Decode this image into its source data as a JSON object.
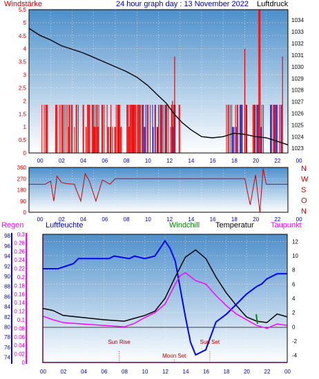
{
  "chart_data": [
    {
      "type": "line",
      "title": "24 hour graph day : 13 November 2022",
      "left_label": "Windstärke",
      "right_label": "Luftdruck",
      "x_ticks": [
        "00",
        "02",
        "04",
        "06",
        "08",
        "10",
        "12",
        "14",
        "16",
        "18",
        "20",
        "22",
        "00"
      ],
      "y_left_ticks": [
        "0",
        "0.5",
        "1",
        "1.5",
        "2",
        "2.5",
        "3",
        "3.5",
        "4",
        "4.5",
        "5",
        "5.5"
      ],
      "y_left_range": [
        0,
        5.5
      ],
      "y_right_ticks": [
        "1023",
        "1024",
        "1025",
        "1026",
        "1027",
        "1028",
        "1029",
        "1030",
        "1031",
        "1032",
        "1033",
        "1034"
      ],
      "y_right_range": [
        1022.6,
        1034.9
      ],
      "series": [
        {
          "name": "Luftdruck",
          "color": "#000000",
          "axis": "right",
          "x": [
            0,
            1,
            2,
            3,
            4,
            5,
            6,
            7,
            8,
            9,
            10,
            11,
            12,
            12.7,
            13.5,
            14.2,
            15,
            16,
            17,
            18,
            19,
            20,
            21,
            22,
            23,
            24
          ],
          "y": [
            1033.3,
            1032.7,
            1032.3,
            1031.8,
            1031.5,
            1031.2,
            1030.8,
            1030.4,
            1030.0,
            1029.6,
            1029.1,
            1028.4,
            1027.5,
            1026.9,
            1025.9,
            1025.2,
            1024.6,
            1024.0,
            1023.9,
            1024.0,
            1024.3,
            1024.2,
            1024.0,
            1023.9,
            1023.6,
            1023.3
          ]
        }
      ]
    },
    {
      "type": "line",
      "right_labels": [
        "N",
        "W",
        "S",
        "O",
        "N"
      ],
      "y_ticks": [
        "0",
        "90",
        "180",
        "270",
        "360"
      ],
      "y_range": [
        0,
        360
      ],
      "x_ticks": [
        "00",
        "02",
        "04",
        "06",
        "08",
        "10",
        "12",
        "14",
        "16",
        "18",
        "20",
        "22",
        "00"
      ],
      "series": [
        {
          "name": "Windrichtung",
          "color": "#cc0000",
          "x": [
            0,
            1.5,
            2.0,
            2.3,
            2.6,
            3.0,
            3.5,
            4.2,
            4.8,
            5.2,
            5.6,
            6.2,
            6.8,
            7.5,
            8.0,
            12.0,
            16.0,
            18.0,
            20.0,
            20.5,
            21.0,
            21.4,
            21.7,
            22.0,
            24.0
          ],
          "y": [
            225,
            225,
            250,
            90,
            290,
            240,
            230,
            225,
            90,
            310,
            250,
            90,
            260,
            225,
            270,
            270,
            270,
            270,
            270,
            60,
            300,
            0,
            350,
            225,
            225
          ]
        }
      ]
    },
    {
      "type": "line",
      "labels": {
        "regen": "Regen",
        "luftfeuchte": "Luftfeuchte",
        "windchill": "Windchill",
        "temperatur": "Temperatur",
        "taupunkt": "Taupunkt"
      },
      "events": [
        {
          "label": "Sun Rise",
          "hour": 7.5
        },
        {
          "label": "Moon Set",
          "hour": 12.9
        },
        {
          "label": "Sun Set",
          "hour": 16.4
        }
      ],
      "x_ticks": [
        "00",
        "02",
        "04",
        "06",
        "08",
        "10",
        "12",
        "14",
        "16",
        "18",
        "20",
        "22",
        "00"
      ],
      "y_humidity_ticks": [
        "74",
        "76",
        "78",
        "80",
        "82",
        "84",
        "86",
        "88",
        "90",
        "92",
        "94",
        "96",
        "98"
      ],
      "y_humidity_range": [
        73,
        98.3
      ],
      "y_rain_ticks": [
        "0",
        "0.02",
        "0.04",
        "0.06",
        "0.08",
        "0.1",
        "0.12",
        "0.14",
        "0.16",
        "0.18",
        "0.2",
        "0.22",
        "0.24",
        "0.26",
        "0.28",
        "0.3"
      ],
      "y_rain_range": [
        0,
        0.3
      ],
      "y_temp_ticks": [
        "-4",
        "-2",
        "0",
        "2",
        "4",
        "6",
        "8",
        "10",
        "12"
      ],
      "y_temp_range": [
        -5,
        13
      ],
      "series": [
        {
          "name": "Temperatur",
          "color": "#000000",
          "axis": "temp",
          "x": [
            0,
            1,
            2,
            4,
            6,
            8,
            9,
            10,
            11,
            12,
            13,
            14,
            15,
            16,
            17,
            18,
            19,
            20,
            21,
            22,
            23,
            24
          ],
          "y": [
            2.6,
            2.3,
            1.6,
            1.3,
            1.0,
            0.8,
            1.2,
            1.6,
            2.2,
            4.0,
            7.0,
            9.8,
            10.8,
            9.6,
            7.0,
            4.8,
            3.0,
            1.4,
            0.8,
            0.6,
            1.8,
            1.4
          ]
        },
        {
          "name": "Taupunkt",
          "color": "#ff00ff",
          "axis": "temp",
          "x": [
            0,
            1,
            2,
            4,
            6,
            8,
            9,
            10,
            11,
            12,
            13,
            13.5,
            14,
            15,
            16,
            17,
            18,
            19,
            20,
            21,
            22,
            23,
            24
          ],
          "y": [
            1.5,
            1.0,
            0.6,
            0.4,
            0.2,
            0.0,
            0.5,
            1.3,
            2.0,
            3.2,
            6.0,
            7.2,
            7.6,
            6.5,
            6.0,
            4.4,
            3.0,
            1.8,
            1.0,
            0.2,
            -0.2,
            0.4,
            0.2
          ]
        },
        {
          "name": "Luftfeuchte",
          "color": "#0000ff",
          "axis": "humidity",
          "x": [
            0,
            1.5,
            3.0,
            3.5,
            6.5,
            7.0,
            8.5,
            9.0,
            10.0,
            11.0,
            12.0,
            12.5,
            13.0,
            14.0,
            14.5,
            15.0,
            16.0,
            17.0,
            18.0,
            19.0,
            20.0,
            21.0,
            21.5,
            22.0,
            23.0,
            24.0
          ],
          "y": [
            91.5,
            91.5,
            92.5,
            93.5,
            93.5,
            94.0,
            93.5,
            94.0,
            93.5,
            94.0,
            97.0,
            95.5,
            93.0,
            82.0,
            77.0,
            74.5,
            75.5,
            81.0,
            82.5,
            84.5,
            86.5,
            88.0,
            88.5,
            89.5,
            90.5,
            90.5
          ]
        }
      ]
    }
  ]
}
